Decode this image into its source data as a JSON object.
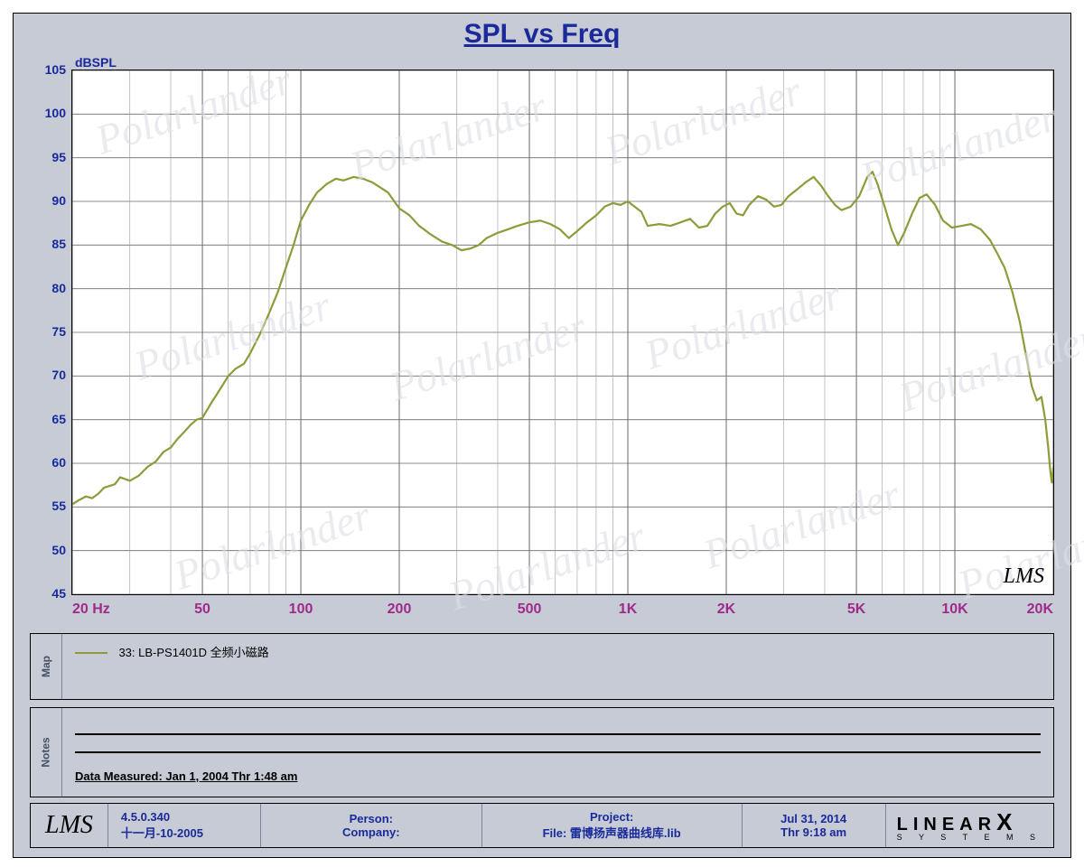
{
  "title": "SPL vs Freq",
  "watermark_text": "Polarlander",
  "chart": {
    "type": "line",
    "ylabel_unit": "dBSPL",
    "ylim": [
      45,
      105
    ],
    "ytick_step": 5,
    "yticks": [
      45,
      50,
      55,
      60,
      65,
      70,
      75,
      80,
      85,
      90,
      95,
      100,
      105
    ],
    "xlim": [
      20,
      20000
    ],
    "xscale": "log",
    "xmin_label": "20  Hz",
    "xticks": [
      {
        "v": 20,
        "label": "20  Hz"
      },
      {
        "v": 50,
        "label": "50"
      },
      {
        "v": 100,
        "label": "100"
      },
      {
        "v": 200,
        "label": "200"
      },
      {
        "v": 500,
        "label": "500"
      },
      {
        "v": 1000,
        "label": "1K"
      },
      {
        "v": 2000,
        "label": "2K"
      },
      {
        "v": 5000,
        "label": "5K"
      },
      {
        "v": 10000,
        "label": "10K"
      },
      {
        "v": 20000,
        "label": "20K"
      }
    ],
    "grid_color": "#6b6b6b",
    "minor_grid_color": "#9a9a9a",
    "background_color": "#ffffff",
    "line_color": "#8f9a3a",
    "line_width": 2.2,
    "lms_mark": "LMS",
    "series": [
      [
        20,
        55.3
      ],
      [
        21,
        55.8
      ],
      [
        22,
        56.2
      ],
      [
        23,
        56.0
      ],
      [
        24,
        56.5
      ],
      [
        25,
        57.2
      ],
      [
        27,
        57.6
      ],
      [
        28,
        58.4
      ],
      [
        30,
        58.0
      ],
      [
        32,
        58.6
      ],
      [
        34,
        59.6
      ],
      [
        36,
        60.2
      ],
      [
        38,
        61.3
      ],
      [
        40,
        61.8
      ],
      [
        42,
        62.8
      ],
      [
        44,
        63.6
      ],
      [
        46,
        64.4
      ],
      [
        48,
        65.0
      ],
      [
        50,
        65.2
      ],
      [
        53,
        66.8
      ],
      [
        56,
        68.2
      ],
      [
        60,
        70.0
      ],
      [
        63,
        70.8
      ],
      [
        67,
        71.4
      ],
      [
        70,
        72.6
      ],
      [
        75,
        74.8
      ],
      [
        80,
        77.2
      ],
      [
        85,
        79.6
      ],
      [
        90,
        82.4
      ],
      [
        95,
        85.0
      ],
      [
        100,
        87.8
      ],
      [
        106,
        89.6
      ],
      [
        112,
        91.0
      ],
      [
        120,
        92.0
      ],
      [
        128,
        92.6
      ],
      [
        135,
        92.4
      ],
      [
        145,
        92.8
      ],
      [
        155,
        92.6
      ],
      [
        165,
        92.2
      ],
      [
        175,
        91.6
      ],
      [
        185,
        91.0
      ],
      [
        200,
        89.2
      ],
      [
        215,
        88.4
      ],
      [
        230,
        87.2
      ],
      [
        250,
        86.2
      ],
      [
        270,
        85.4
      ],
      [
        290,
        85.0
      ],
      [
        310,
        84.4
      ],
      [
        330,
        84.6
      ],
      [
        350,
        85.0
      ],
      [
        370,
        85.8
      ],
      [
        400,
        86.4
      ],
      [
        430,
        86.8
      ],
      [
        460,
        87.2
      ],
      [
        500,
        87.6
      ],
      [
        540,
        87.8
      ],
      [
        580,
        87.4
      ],
      [
        620,
        86.8
      ],
      [
        660,
        85.8
      ],
      [
        700,
        86.6
      ],
      [
        750,
        87.6
      ],
      [
        800,
        88.4
      ],
      [
        850,
        89.4
      ],
      [
        900,
        89.8
      ],
      [
        950,
        89.6
      ],
      [
        1000,
        90.0
      ],
      [
        1100,
        88.8
      ],
      [
        1150,
        87.2
      ],
      [
        1250,
        87.4
      ],
      [
        1350,
        87.2
      ],
      [
        1450,
        87.6
      ],
      [
        1550,
        88.0
      ],
      [
        1650,
        87.0
      ],
      [
        1750,
        87.2
      ],
      [
        1850,
        88.6
      ],
      [
        1950,
        89.4
      ],
      [
        2050,
        89.8
      ],
      [
        2150,
        88.6
      ],
      [
        2250,
        88.4
      ],
      [
        2350,
        89.6
      ],
      [
        2500,
        90.6
      ],
      [
        2650,
        90.2
      ],
      [
        2800,
        89.4
      ],
      [
        2950,
        89.6
      ],
      [
        3100,
        90.6
      ],
      [
        3300,
        91.4
      ],
      [
        3500,
        92.2
      ],
      [
        3700,
        92.8
      ],
      [
        3900,
        91.8
      ],
      [
        4100,
        90.6
      ],
      [
        4300,
        89.6
      ],
      [
        4500,
        89.0
      ],
      [
        4800,
        89.4
      ],
      [
        5100,
        90.6
      ],
      [
        5400,
        92.8
      ],
      [
        5600,
        93.4
      ],
      [
        5800,
        92.0
      ],
      [
        6100,
        89.4
      ],
      [
        6400,
        86.8
      ],
      [
        6700,
        85.0
      ],
      [
        7000,
        86.4
      ],
      [
        7400,
        88.6
      ],
      [
        7800,
        90.4
      ],
      [
        8200,
        90.8
      ],
      [
        8700,
        89.6
      ],
      [
        9200,
        87.8
      ],
      [
        9800,
        87.0
      ],
      [
        10500,
        87.2
      ],
      [
        11200,
        87.4
      ],
      [
        12000,
        86.8
      ],
      [
        12800,
        85.6
      ],
      [
        13500,
        84.0
      ],
      [
        14200,
        82.4
      ],
      [
        15000,
        79.6
      ],
      [
        15800,
        76.2
      ],
      [
        16500,
        72.4
      ],
      [
        17200,
        68.8
      ],
      [
        17800,
        67.2
      ],
      [
        18400,
        67.6
      ],
      [
        18900,
        65.0
      ],
      [
        19300,
        61.8
      ],
      [
        19600,
        59.0
      ],
      [
        19800,
        57.8
      ],
      [
        20000,
        59.6
      ]
    ]
  },
  "map_panel": {
    "label": "Map",
    "legend_text": "33: LB-PS1401D 全频小磁路"
  },
  "notes_panel": {
    "label": "Notes",
    "measured": "Data Measured: Jan  1, 2004  Thr  1:48 am"
  },
  "footer": {
    "lms": "LMS",
    "version": "4.5.0.340",
    "date_cn": "十一月-10-2005",
    "person_label": "Person:",
    "company_label": "Company:",
    "project_label": "Project:",
    "file_label": "File: 雷博扬声器曲线库.lib",
    "date2": "Jul 31, 2014",
    "time2": "Thr  9:18 am",
    "linearx": "LINEAR",
    "linearx_x": "X",
    "linearx_sub": "S Y S T E M S"
  },
  "colors": {
    "frame_bg": "#c6cbd6",
    "title_color": "#1a2a9a",
    "ytick_color": "#1a2a9a",
    "xtick_color": "#a02a8a",
    "footer_text": "#1a2a9a"
  }
}
